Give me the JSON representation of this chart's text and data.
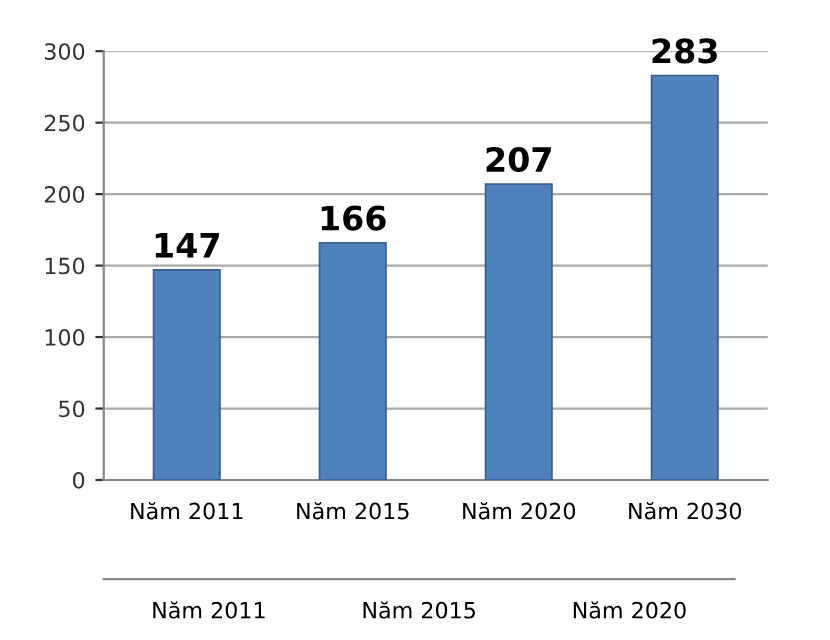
{
  "chart_data": [
    {
      "type": "bar",
      "categories": [
        "Năm 2011",
        "Năm 2015",
        "Năm 2020",
        "Năm 2030"
      ],
      "values": [
        147,
        166,
        207,
        283
      ],
      "color": "#4f81bd",
      "ylim": [
        0,
        300
      ],
      "yticks": [
        0,
        50,
        100,
        150,
        200,
        250,
        300
      ],
      "grid": "y",
      "data_labels": true
    },
    {
      "type": "other",
      "categories": [
        "Năm 2011",
        "Năm 2015",
        "Năm 2020"
      ]
    }
  ]
}
